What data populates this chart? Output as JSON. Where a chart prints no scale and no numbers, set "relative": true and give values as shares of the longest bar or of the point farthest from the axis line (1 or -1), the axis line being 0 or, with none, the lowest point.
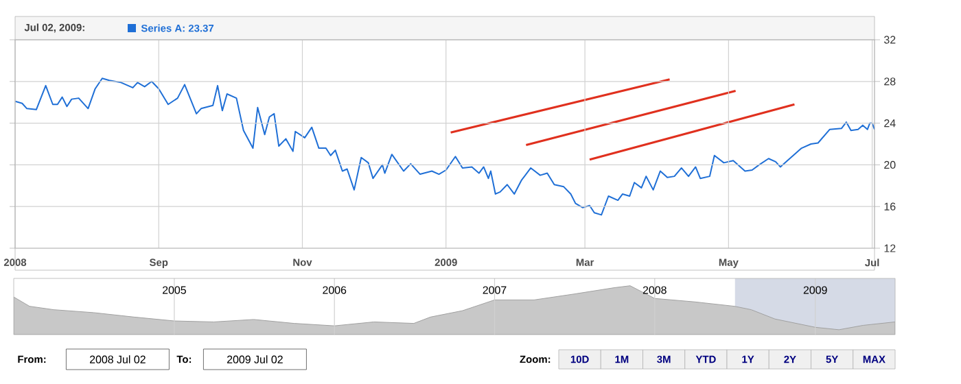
{
  "chart_data": [
    {
      "type": "line",
      "annotations": [
        "Jul 02, 2009:",
        ": 23.37"
      ],
      "legend": "top left",
      "grid": true,
      "marker": "none",
      "line_style": "solid",
      "xlim": [
        "2008-07-02",
        "2009-07-02"
      ],
      "ylim": [
        12,
        32
      ],
      "xticks": [
        {
          "value": "2008-07-02",
          "label": "2008"
        },
        {
          "value": "2008-09-01",
          "label": "Sep"
        },
        {
          "value": "2008-11-01",
          "label": "Nov"
        },
        {
          "value": "2009-01-01",
          "label": "2009"
        },
        {
          "value": "2009-03-01",
          "label": "Mar"
        },
        {
          "value": "2009-05-01",
          "label": "May"
        },
        {
          "value": "2009-07-01",
          "label": "Jul"
        }
      ],
      "yticks": [
        12,
        16,
        20,
        24,
        28,
        32
      ],
      "series": [
        {
          "name": "Series A",
          "color": "#1f6fd6",
          "x": [
            "2008-07-02",
            "2008-07-05",
            "2008-07-07",
            "2008-07-11",
            "2008-07-15",
            "2008-07-18",
            "2008-07-20",
            "2008-07-22",
            "2008-07-24",
            "2008-07-26",
            "2008-07-29",
            "2008-08-02",
            "2008-08-05",
            "2008-08-08",
            "2008-08-11",
            "2008-08-16",
            "2008-08-21",
            "2008-08-23",
            "2008-08-26",
            "2008-08-29",
            "2008-09-01",
            "2008-09-05",
            "2008-09-09",
            "2008-09-12",
            "2008-09-17",
            "2008-09-19",
            "2008-09-24",
            "2008-09-26",
            "2008-09-28",
            "2008-09-30",
            "2008-10-04",
            "2008-10-07",
            "2008-10-11",
            "2008-10-13",
            "2008-10-16",
            "2008-10-18",
            "2008-10-20",
            "2008-10-22",
            "2008-10-25",
            "2008-10-28",
            "2008-10-29",
            "2008-11-02",
            "2008-11-05",
            "2008-11-08",
            "2008-11-11",
            "2008-11-13",
            "2008-11-15",
            "2008-11-18",
            "2008-11-20",
            "2008-11-23",
            "2008-11-26",
            "2008-11-29",
            "2008-12-01",
            "2008-12-05",
            "2008-12-06",
            "2008-12-09",
            "2008-12-14",
            "2008-12-17",
            "2008-12-21",
            "2008-12-26",
            "2008-12-29",
            "2009-01-01",
            "2009-01-05",
            "2009-01-08",
            "2009-01-12",
            "2009-01-15",
            "2009-01-17",
            "2009-01-19",
            "2009-01-20",
            "2009-01-22",
            "2009-01-24",
            "2009-01-27",
            "2009-01-30",
            "2009-02-02",
            "2009-02-06",
            "2009-02-10",
            "2009-02-13",
            "2009-02-16",
            "2009-02-20",
            "2009-02-23",
            "2009-02-25",
            "2009-02-28",
            "2009-03-03",
            "2009-03-05",
            "2009-03-08",
            "2009-03-11",
            "2009-03-15",
            "2009-03-17",
            "2009-03-20",
            "2009-03-22",
            "2009-03-25",
            "2009-03-27",
            "2009-03-30",
            "2009-04-02",
            "2009-04-05",
            "2009-04-08",
            "2009-04-11",
            "2009-04-14",
            "2009-04-17",
            "2009-04-19",
            "2009-04-23",
            "2009-04-25",
            "2009-04-29",
            "2009-05-03",
            "2009-05-08",
            "2009-05-11",
            "2009-05-14",
            "2009-05-18",
            "2009-05-21",
            "2009-05-23",
            "2009-05-26",
            "2009-06-01",
            "2009-06-05",
            "2009-06-08",
            "2009-06-13",
            "2009-06-18",
            "2009-06-20",
            "2009-06-22",
            "2009-06-25",
            "2009-06-27",
            "2009-06-29",
            "2009-06-30",
            "2009-07-01",
            "2009-07-02"
          ],
          "values": [
            26.1,
            25.9,
            25.4,
            25.3,
            27.6,
            25.8,
            25.8,
            26.5,
            25.6,
            26.3,
            26.4,
            25.4,
            27.3,
            28.3,
            28.1,
            27.9,
            27.4,
            27.9,
            27.5,
            28.0,
            27.3,
            25.8,
            26.4,
            27.7,
            24.9,
            25.4,
            25.7,
            27.6,
            25.2,
            26.8,
            26.4,
            23.3,
            21.6,
            25.5,
            22.9,
            24.6,
            24.9,
            21.8,
            22.5,
            21.3,
            23.2,
            22.6,
            23.6,
            21.6,
            21.6,
            20.9,
            21.4,
            19.4,
            19.6,
            17.6,
            20.7,
            20.2,
            18.7,
            20.0,
            19.2,
            21.0,
            19.4,
            20.1,
            19.1,
            19.4,
            19.1,
            19.5,
            20.8,
            19.7,
            19.8,
            19.2,
            19.8,
            18.7,
            19.4,
            17.2,
            17.4,
            18.1,
            17.2,
            18.5,
            19.7,
            19.0,
            19.2,
            18.1,
            17.9,
            17.2,
            16.3,
            15.9,
            16.1,
            15.4,
            15.2,
            17.0,
            16.6,
            17.2,
            17.0,
            18.3,
            17.8,
            18.9,
            17.6,
            19.4,
            18.8,
            18.9,
            19.7,
            18.9,
            19.8,
            18.7,
            18.9,
            20.9,
            20.2,
            20.4,
            19.4,
            19.5,
            20.0,
            20.6,
            20.3,
            19.8,
            20.4,
            21.6,
            22.0,
            22.1,
            23.4,
            23.5,
            24.1,
            23.3,
            23.4,
            23.8,
            23.4,
            24.0,
            24.0,
            23.4
          ]
        },
        {
          "color": "#e0301e",
          "x": [
            "2009-01-03",
            "2009-04-06"
          ],
          "values": [
            23.1,
            28.2
          ]
        },
        {
          "color": "#e0301e",
          "x": [
            "2009-02-04",
            "2009-05-04"
          ],
          "values": [
            21.9,
            27.1
          ]
        },
        {
          "color": "#e0301e",
          "x": [
            "2009-03-03",
            "2009-05-29"
          ],
          "values": [
            20.5,
            25.8
          ]
        }
      ]
    },
    {
      "type": "area",
      "relative": true,
      "grid": "x",
      "annotations": [
        "From:",
        "2008 Jul 02",
        "To:",
        "2009 Jul 02",
        "Zoom:",
        "10D",
        "1M",
        "3M",
        "YTD",
        "1Y",
        "2Y",
        "5Y",
        "MAX"
      ],
      "xlim": [
        "2004-01-01",
        "2009-07-02"
      ],
      "xticks": [
        {
          "value": "2005-01-01",
          "label": "2005"
        },
        {
          "value": "2006-01-01",
          "label": "2006"
        },
        {
          "value": "2007-01-01",
          "label": "2007"
        },
        {
          "value": "2008-01-01",
          "label": "2008"
        },
        {
          "value": "2009-01-01",
          "label": "2009"
        }
      ],
      "bands": [
        {
          "axis": "x",
          "from": "2008-07-02",
          "to": "2009-07-02",
          "color": "#d5dae6"
        }
      ],
      "series": [
        {
          "color": "#c8c8c8",
          "x": [
            "2004-01-01",
            "2004-02-06",
            "2004-04-01",
            "2004-07-01",
            "2004-10-01",
            "2005-01-01",
            "2005-04-01",
            "2005-07-01",
            "2005-10-01",
            "2006-01-01",
            "2006-04-01",
            "2006-07-01",
            "2006-08-08",
            "2006-10-20",
            "2007-01-01",
            "2007-04-01",
            "2007-07-01",
            "2007-10-01",
            "2007-11-06",
            "2008-01-01",
            "2008-04-01",
            "2008-07-01",
            "2008-08-08",
            "2008-10-01",
            "2009-01-01",
            "2009-02-24",
            "2009-04-20",
            "2009-07-02"
          ],
          "values": [
            0.77,
            0.58,
            0.51,
            0.45,
            0.36,
            0.28,
            0.26,
            0.31,
            0.23,
            0.18,
            0.26,
            0.23,
            0.36,
            0.49,
            0.71,
            0.71,
            0.83,
            0.96,
            1,
            0.74,
            0.67,
            0.58,
            0.51,
            0.32,
            0.15,
            0.1,
            0.19,
            0.26
          ]
        }
      ]
    }
  ]
}
